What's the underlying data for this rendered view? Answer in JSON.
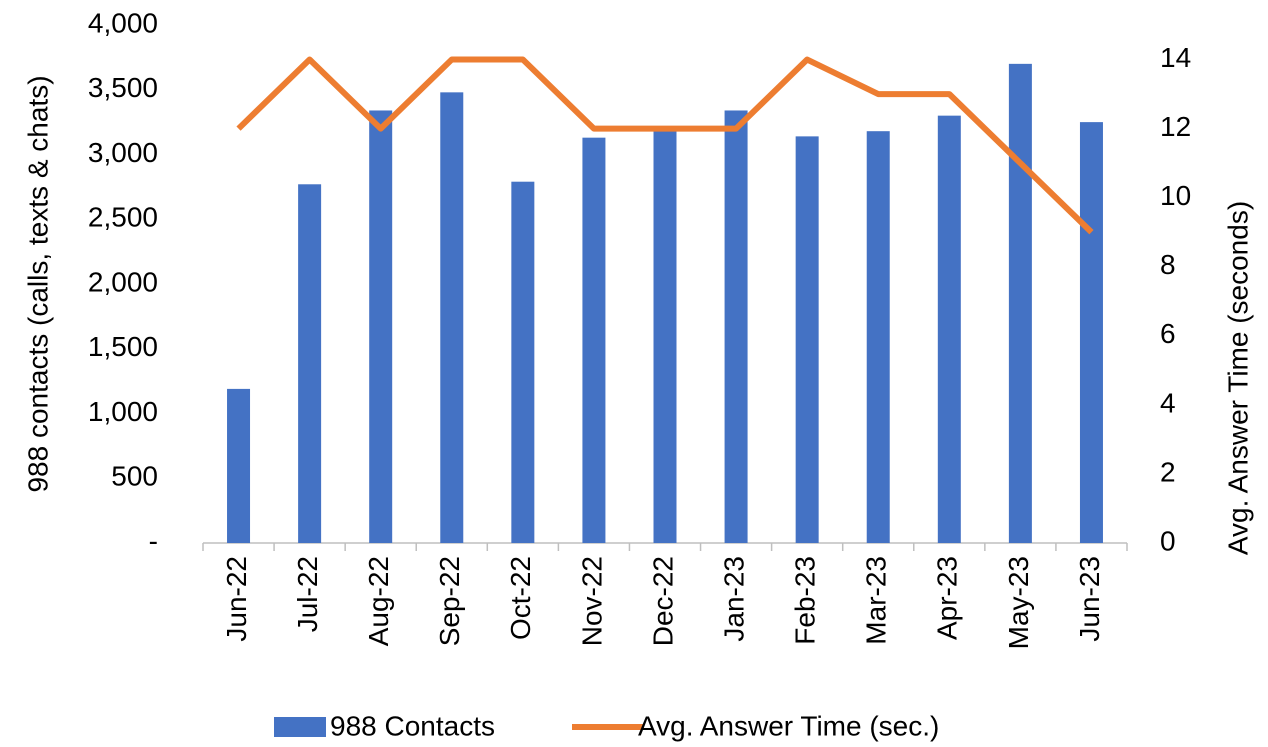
{
  "chart_data": {
    "type": "bar_line",
    "categories": [
      "Jun-22",
      "Jul-22",
      "Aug-22",
      "Sep-22",
      "Oct-22",
      "Nov-22",
      "Dec-22",
      "Jan-23",
      "Feb-23",
      "Mar-23",
      "Apr-23",
      "May-23",
      "Jun-23"
    ],
    "series": [
      {
        "name": "988 Contacts",
        "type": "bar",
        "color": "#4472c4",
        "values": [
          1190,
          2770,
          3340,
          3480,
          2790,
          3130,
          3190,
          3340,
          3140,
          3180,
          3300,
          3700,
          3250
        ]
      },
      {
        "name": "Avg. Answer Time (sec.)",
        "type": "line",
        "axis": "y2",
        "color": "#ed7d31",
        "values": [
          12,
          14,
          12,
          14,
          14,
          12,
          12,
          12,
          14,
          13,
          13,
          11,
          9
        ]
      }
    ],
    "ylabel": "988 contacts (calls, texts & chats)",
    "y2label": "Avg. Answer Time (seconds)",
    "ylim": [
      0,
      4000
    ],
    "yticks": [
      {
        "value": 0,
        "label": "-"
      },
      500,
      {
        "value": 1000,
        "label": "1,000"
      },
      {
        "value": 1500,
        "label": "1,500"
      },
      {
        "value": 2000,
        "label": "2,000"
      },
      {
        "value": 2500,
        "label": "2,500"
      },
      {
        "value": 3000,
        "label": "3,000"
      },
      {
        "value": 3500,
        "label": "3,500"
      },
      {
        "value": 4000,
        "label": "4,000"
      }
    ],
    "y2lim": [
      0,
      15
    ],
    "y2ticks": [
      0,
      2,
      4,
      6,
      8,
      10,
      12,
      14
    ],
    "legend": "bottom"
  }
}
